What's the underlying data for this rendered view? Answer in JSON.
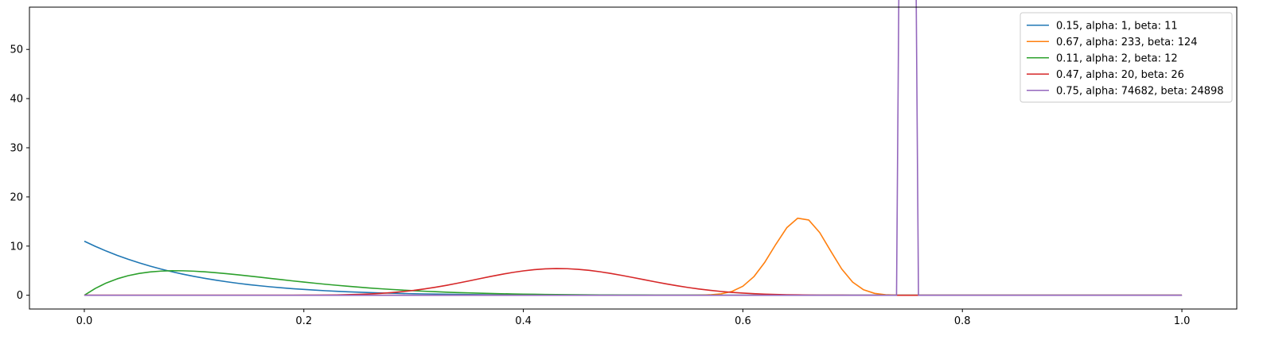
{
  "chart_data": {
    "type": "line",
    "title": "",
    "xlabel": "",
    "ylabel": "",
    "xlim": [
      -0.05,
      1.05
    ],
    "ylim": [
      -2.8,
      58.6
    ],
    "x_ticks": [
      0.0,
      0.2,
      0.4,
      0.6,
      0.8,
      1.0
    ],
    "x_tick_labels": [
      "0.0",
      "0.2",
      "0.4",
      "0.6",
      "0.8",
      "1.0"
    ],
    "y_ticks": [
      0,
      10,
      20,
      30,
      40,
      50
    ],
    "y_tick_labels": [
      "0",
      "10",
      "20",
      "30",
      "40",
      "50"
    ],
    "grid": false,
    "legend_position": "top-right",
    "x_samples": {
      "start": 0.0,
      "stop": 1.0,
      "count": 101
    },
    "series": [
      {
        "name": "0.15, alpha: 1, beta: 11",
        "alpha": 1,
        "beta": 11,
        "color": "#1f77b4"
      },
      {
        "name": "0.67, alpha: 233, beta: 124",
        "alpha": 233,
        "beta": 124,
        "color": "#ff7f0e"
      },
      {
        "name": "0.11, alpha: 2, beta: 12",
        "alpha": 2,
        "beta": 12,
        "color": "#2ca02c"
      },
      {
        "name": "0.47, alpha: 20, beta: 26",
        "alpha": 20,
        "beta": 26,
        "color": "#d62728"
      },
      {
        "name": "0.75, alpha: 74682, beta: 24898",
        "alpha": 74682,
        "beta": 24898,
        "color": "#9467bd"
      }
    ]
  }
}
